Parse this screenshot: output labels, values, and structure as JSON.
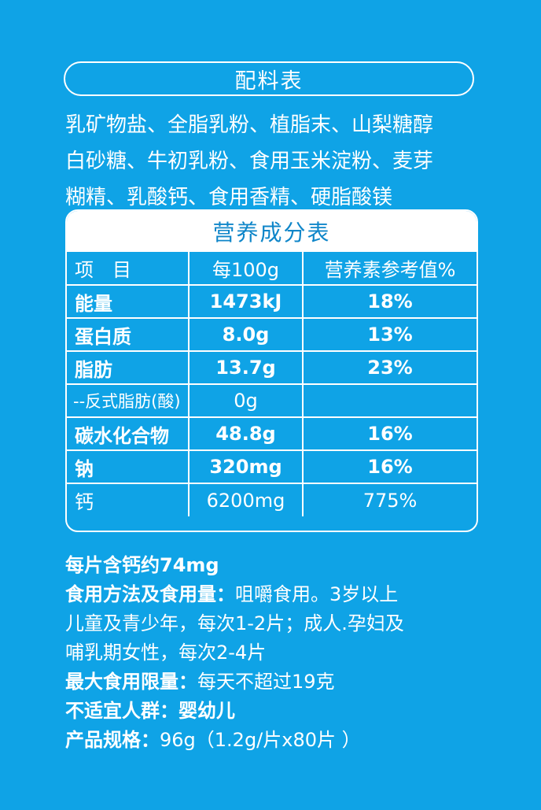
{
  "ingredients": {
    "title": "配料表",
    "lines": [
      "乳矿物盐、全脂乳粉、植脂末、山梨糖醇",
      "白砂糖、牛初乳粉、食用玉米淀粉、麦芽",
      "糊精、乳酸钙、食用香精、硬脂酸镁"
    ]
  },
  "nutrition": {
    "title": "营养成分表",
    "headers": [
      "项　目",
      "每100g",
      "营养素参考值%"
    ],
    "rows": [
      {
        "item": "能量",
        "per100g": "1473kJ",
        "nrv": "18%"
      },
      {
        "item": "蛋白质",
        "per100g": "8.0g",
        "nrv": "13%"
      },
      {
        "item": "脂肪",
        "per100g": "13.7g",
        "nrv": "23%"
      },
      {
        "item": "--反式脂肪(酸)",
        "per100g": "0g",
        "nrv": ""
      },
      {
        "item": "碳水化合物",
        "per100g": "48.8g",
        "nrv": "16%"
      },
      {
        "item": "钠",
        "per100g": "320mg",
        "nrv": "16%"
      },
      {
        "item": "钙",
        "per100g": "6200mg",
        "nrv": "775%"
      }
    ]
  },
  "info": {
    "calcium_per_tablet": "每片含钙约74mg",
    "usage_label": "食用方法及食用量：",
    "usage_line1": "咀嚼食用。3岁以上",
    "usage_line2": "儿童及青少年，每次1-2片；成人.孕妇及",
    "usage_line3": "哺乳期女性，每次2-4片",
    "max_label": "最大食用限量：",
    "max_value": "每天不超过19克",
    "unsuitable_label": "不适宜人群：",
    "unsuitable_value": "婴幼儿",
    "spec_label": "产品规格：",
    "spec_value": "96g（1.2g/片x80片 ）"
  },
  "colors": {
    "background": "#0fa3e6",
    "title_text": "#0f86c9"
  }
}
